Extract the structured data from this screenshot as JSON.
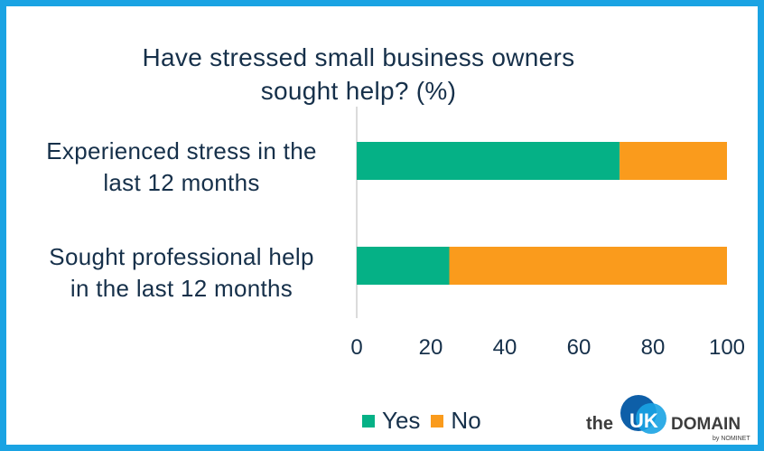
{
  "chart_data": {
    "type": "bar",
    "orientation": "horizontal",
    "stacked": true,
    "title_lines": [
      "Have stressed small business owners",
      "sought help? (%)"
    ],
    "categories": [
      {
        "lines": [
          "Experienced stress in the",
          "last 12 months"
        ]
      },
      {
        "lines": [
          "Sought professional help",
          "in the last 12 months"
        ]
      }
    ],
    "series": [
      {
        "name": "Yes",
        "color": "#05b186",
        "values": [
          71,
          25
        ]
      },
      {
        "name": "No",
        "color": "#fa9b1c",
        "values": [
          29,
          75
        ]
      }
    ],
    "xlim": [
      0,
      100
    ],
    "xticks": [
      "0",
      "20",
      "40",
      "60",
      "80",
      "100"
    ],
    "grid": false,
    "legend_position": "bottom"
  },
  "logo": {
    "prefix": "the",
    "mark": "UK",
    "suffix": "DOMAIN",
    "byline": "by NOMINET",
    "colors": {
      "circle_dark": "#0e5fa8",
      "circle_light": "#1aa3e3",
      "text": "#3d3d3d"
    }
  },
  "frame_color": "#1aa3e3"
}
